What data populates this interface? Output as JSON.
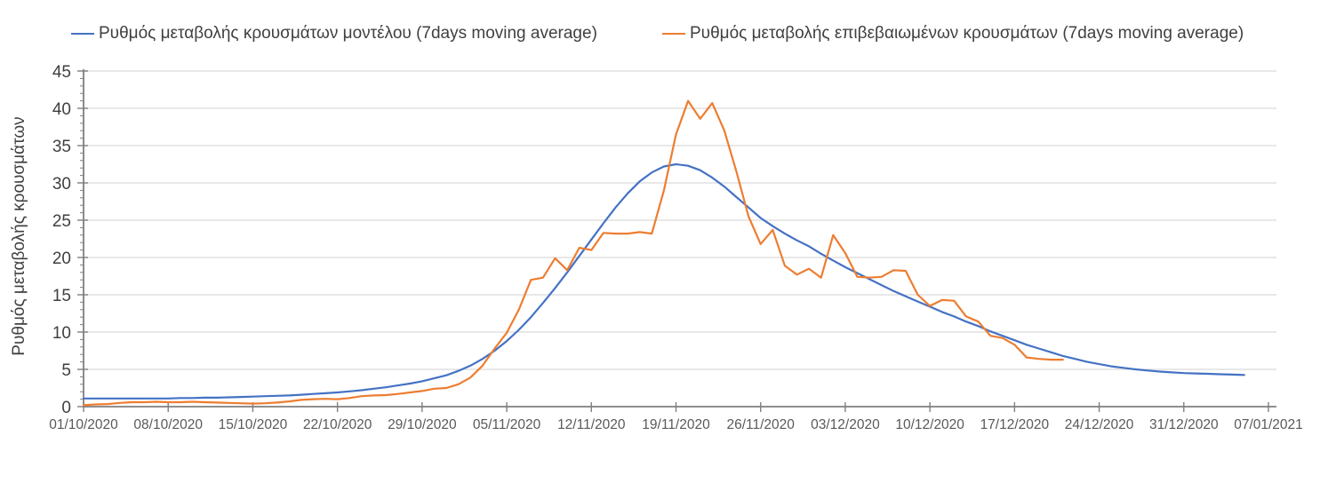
{
  "chart_data": {
    "type": "line",
    "title": "",
    "ylabel": "Ρυθμός μεταβολής κρουσμάτων",
    "xlabel": "",
    "ylim": [
      0,
      45
    ],
    "y_ticks": [
      0,
      5,
      10,
      15,
      20,
      25,
      30,
      35,
      40,
      45
    ],
    "y_minor_tick_step": 1,
    "grid": "horizontal",
    "legend_position": "top",
    "x_tick_labels": [
      "01/10/2020",
      "08/10/2020",
      "15/10/2020",
      "22/10/2020",
      "29/10/2020",
      "05/11/2020",
      "12/11/2020",
      "19/11/2020",
      "26/11/2020",
      "03/12/2020",
      "10/12/2020",
      "17/12/2020",
      "24/12/2020",
      "31/12/2020",
      "07/01/2021"
    ],
    "x_days_per_tick": 7,
    "x_total_days": 98,
    "colors": {
      "model_series": "#4472c4",
      "confirmed_series": "#ed7d31",
      "gridline": "#d9d9d9",
      "axis": "#7f7f7f"
    },
    "series": [
      {
        "name": "Ρυθμός μεταβολής κρουσμάτων μοντέλου (7days moving average)",
        "color": "#4472c4",
        "start_date": "01/10/2020",
        "end_date": "05/01/2021",
        "start_day_index": 0,
        "values": [
          1.1,
          1.1,
          1.1,
          1.1,
          1.1,
          1.1,
          1.1,
          1.1,
          1.15,
          1.15,
          1.2,
          1.2,
          1.25,
          1.3,
          1.35,
          1.4,
          1.45,
          1.5,
          1.6,
          1.7,
          1.8,
          1.9,
          2.05,
          2.2,
          2.4,
          2.6,
          2.85,
          3.1,
          3.4,
          3.8,
          4.2,
          4.8,
          5.5,
          6.4,
          7.5,
          8.8,
          10.3,
          12.0,
          13.9,
          15.9,
          18.0,
          20.2,
          22.4,
          24.6,
          26.7,
          28.6,
          30.2,
          31.4,
          32.2,
          32.5,
          32.3,
          31.7,
          30.7,
          29.5,
          28.1,
          26.7,
          25.3,
          24.2,
          23.2,
          22.3,
          21.5,
          20.5,
          19.6,
          18.7,
          17.9,
          17.1,
          16.3,
          15.5,
          14.8,
          14.1,
          13.4,
          12.7,
          12.1,
          11.4,
          10.8,
          10.1,
          9.5,
          8.9,
          8.3,
          7.8,
          7.3,
          6.8,
          6.4,
          6.0,
          5.7,
          5.4,
          5.2,
          5.0,
          4.85,
          4.7,
          4.6,
          4.5,
          4.45,
          4.4,
          4.35,
          4.3,
          4.25
        ]
      },
      {
        "name": "Ρυθμός μεταβολής επιβεβαιωμένων κρουσμάτων (7days moving average)",
        "color": "#ed7d31",
        "start_date": "01/10/2020",
        "end_date": "21/12/2020",
        "start_day_index": 0,
        "values": [
          0.2,
          0.3,
          0.35,
          0.5,
          0.6,
          0.6,
          0.65,
          0.6,
          0.6,
          0.65,
          0.6,
          0.55,
          0.5,
          0.45,
          0.4,
          0.45,
          0.55,
          0.7,
          0.9,
          1.0,
          1.05,
          1.0,
          1.15,
          1.4,
          1.5,
          1.55,
          1.7,
          1.9,
          2.1,
          2.4,
          2.5,
          3.0,
          3.9,
          5.5,
          7.8,
          9.9,
          13.0,
          17.0,
          17.3,
          19.9,
          18.3,
          21.3,
          21.0,
          23.3,
          23.2,
          23.2,
          23.4,
          23.2,
          29.0,
          36.5,
          41.0,
          38.6,
          40.7,
          37.0,
          31.5,
          25.5,
          21.8,
          23.7,
          18.9,
          17.7,
          18.5,
          17.3,
          23.0,
          20.6,
          17.4,
          17.3,
          17.4,
          18.3,
          18.2,
          15.0,
          13.5,
          14.3,
          14.2,
          12.1,
          11.4,
          9.5,
          9.2,
          8.3,
          6.6,
          6.4,
          6.3,
          6.3
        ]
      }
    ]
  }
}
